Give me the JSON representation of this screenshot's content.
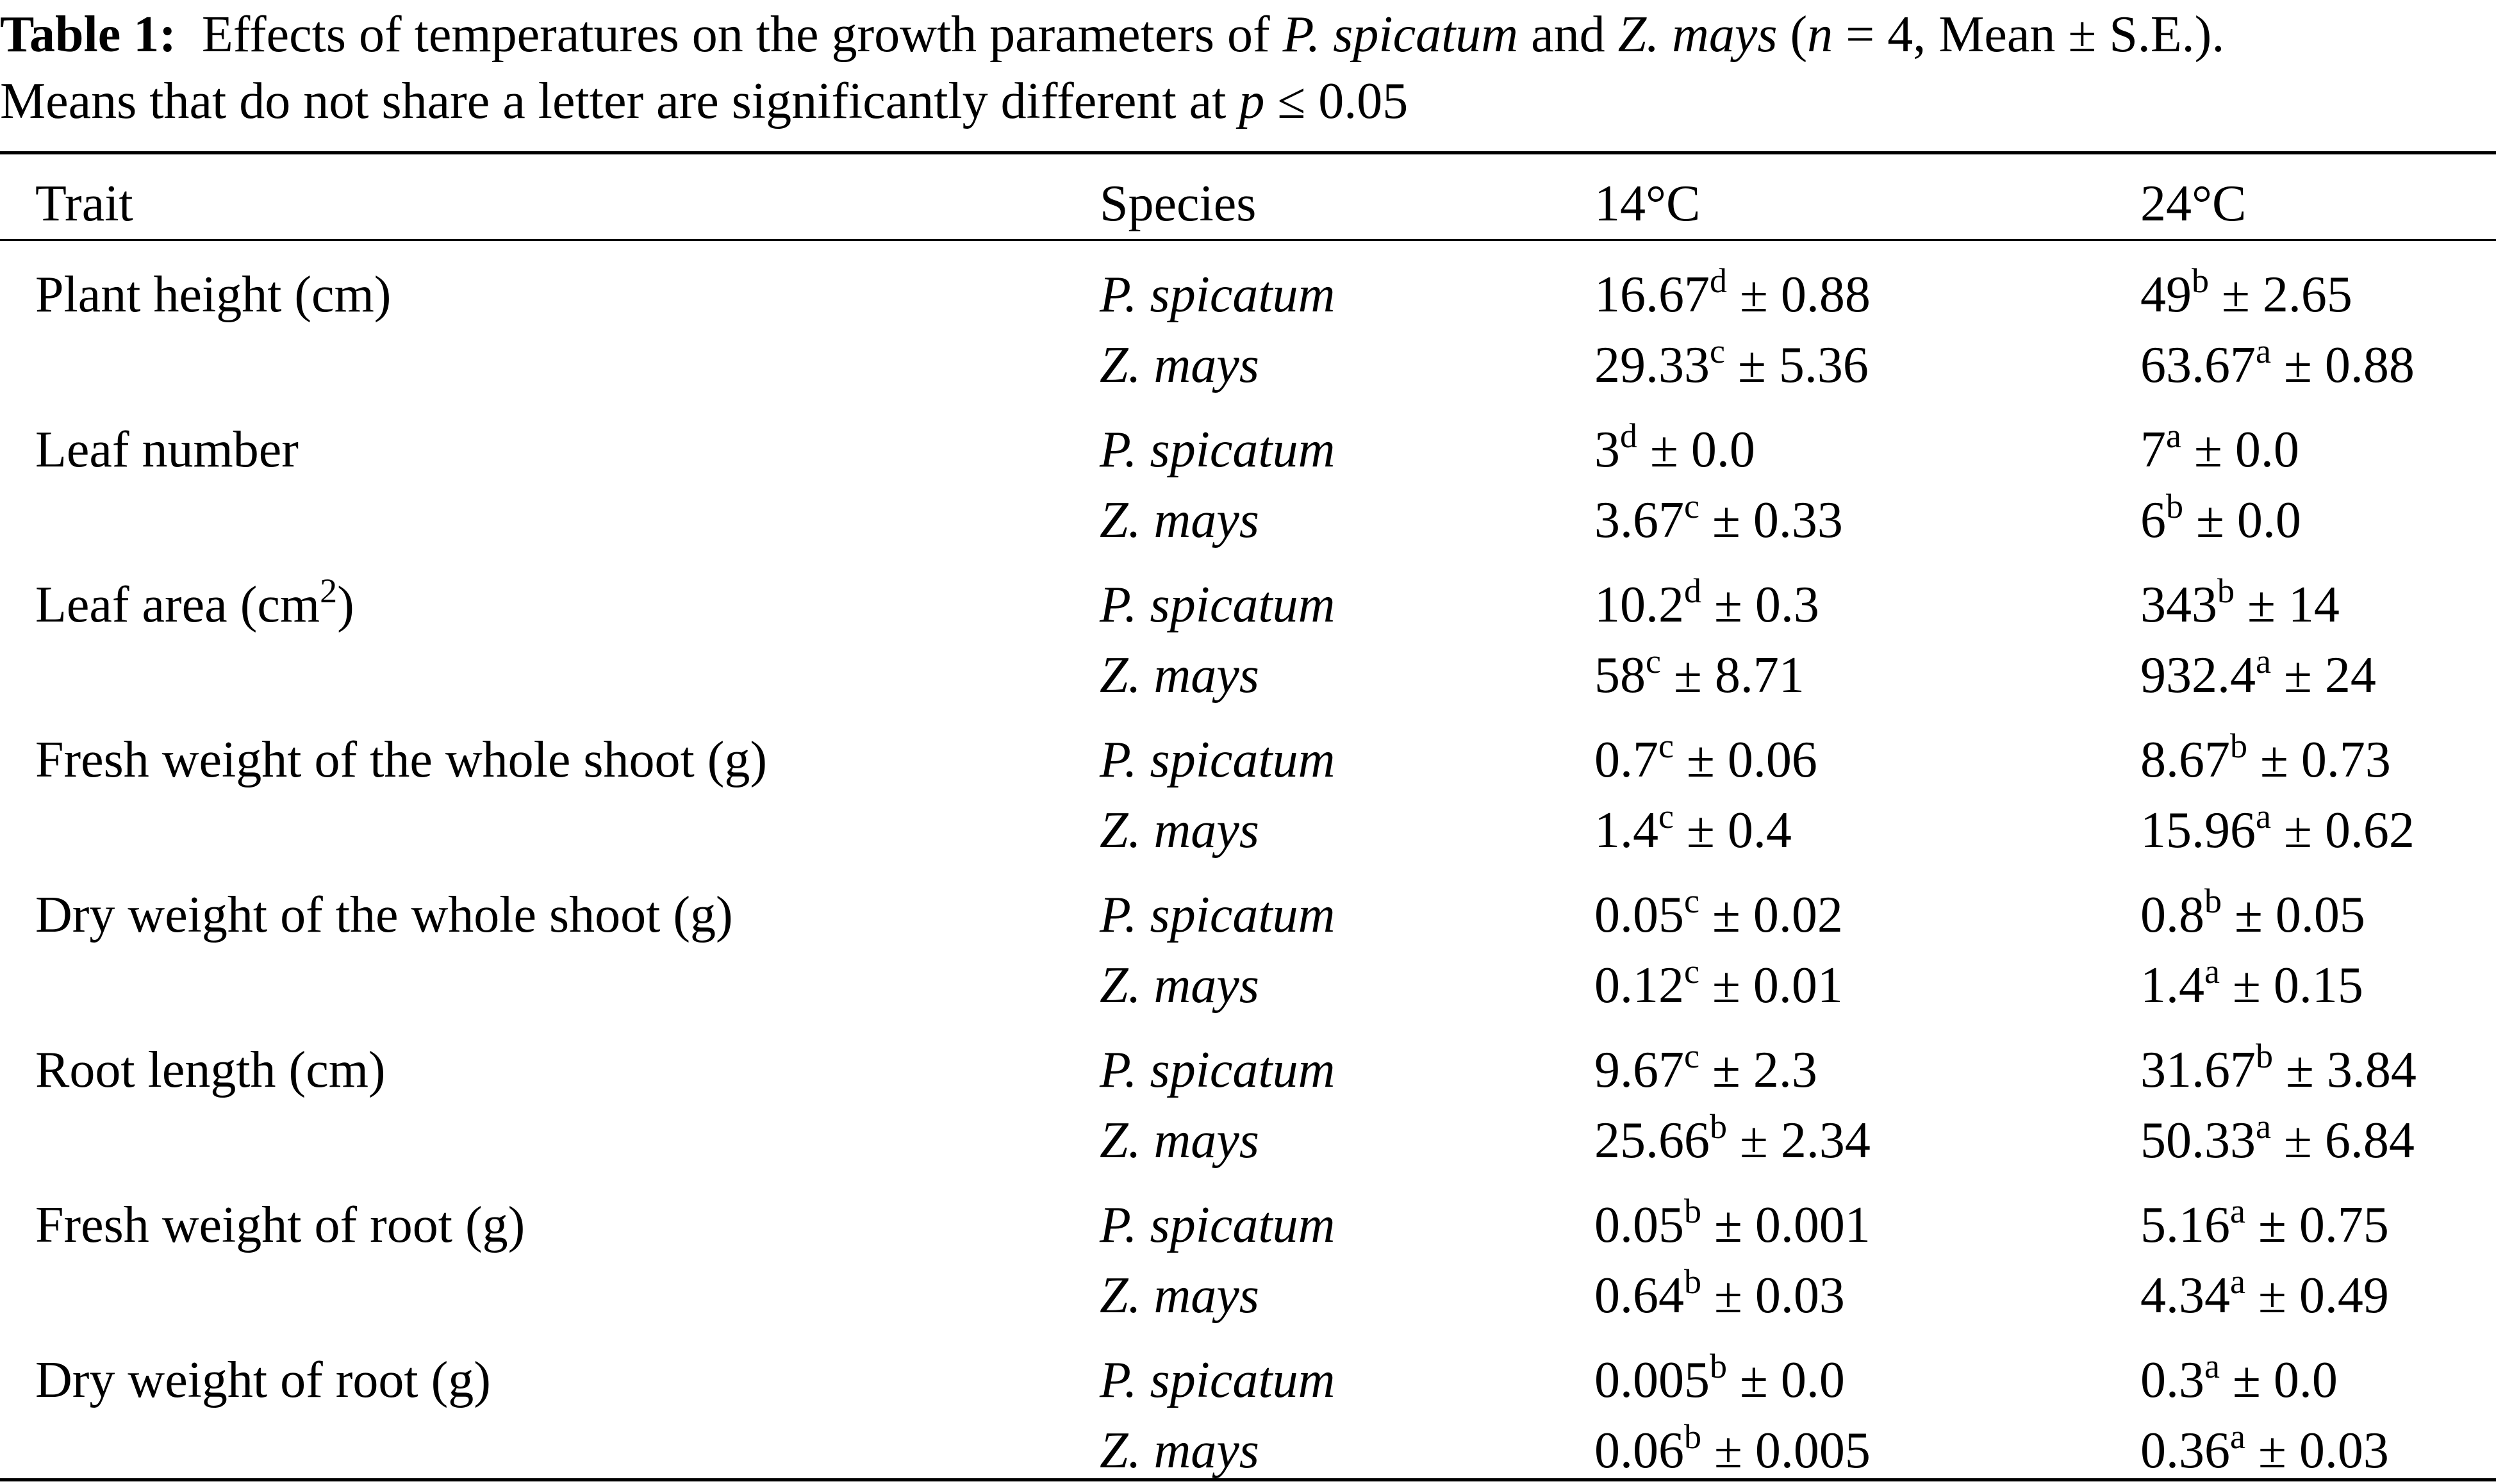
{
  "caption": {
    "label": "Table 1:",
    "text_1": "Effects of temperatures on the growth parameters of",
    "species_1": "P. spicatum",
    "text_2": "and",
    "species_2": "Z. mays",
    "text_3": "(",
    "n_symbol": "n",
    "text_4": "= 4, Mean ± S.E.).",
    "line2": "Means that do not share a letter are significantly different at",
    "p_symbol": "p",
    "p_value": "≤ 0.05"
  },
  "table": {
    "headers": [
      "Trait",
      "Species",
      "14°C",
      "24°C"
    ],
    "rows": [
      {
        "trait": "Plant height (cm)",
        "trait_sup": "",
        "trait_end": "",
        "entries": [
          {
            "species": "P. spicatum",
            "t14": {
              "mean": "16.67",
              "letter": "d",
              "se": "± 0.88"
            },
            "t24": {
              "mean": "49",
              "letter": "b",
              "se": "± 2.65"
            }
          },
          {
            "species": "Z. mays",
            "t14": {
              "mean": "29.33",
              "letter": "c",
              "se": "± 5.36"
            },
            "t24": {
              "mean": "63.67",
              "letter": "a",
              "se": "± 0.88"
            }
          }
        ]
      },
      {
        "trait": "Leaf number",
        "trait_sup": "",
        "trait_end": "",
        "entries": [
          {
            "species": "P. spicatum",
            "t14": {
              "mean": "3",
              "letter": "d",
              "se": "± 0.0"
            },
            "t24": {
              "mean": "7",
              "letter": "a",
              "se": "± 0.0"
            }
          },
          {
            "species": "Z. mays",
            "t14": {
              "mean": "3.67",
              "letter": "c",
              "se": "± 0.33"
            },
            "t24": {
              "mean": "6",
              "letter": "b",
              "se": "± 0.0"
            }
          }
        ]
      },
      {
        "trait": "Leaf area (cm",
        "trait_sup": "2",
        "trait_end": ")",
        "entries": [
          {
            "species": "P. spicatum",
            "t14": {
              "mean": "10.2",
              "letter": "d",
              "se": "± 0.3"
            },
            "t24": {
              "mean": "343",
              "letter": "b",
              "se": "± 14"
            }
          },
          {
            "species": "Z. mays",
            "t14": {
              "mean": "58",
              "letter": "c",
              "se": "± 8.71"
            },
            "t24": {
              "mean": "932.4",
              "letter": "a",
              "se": "± 24"
            }
          }
        ]
      },
      {
        "trait": "Fresh weight of the whole shoot (g)",
        "trait_sup": "",
        "trait_end": "",
        "entries": [
          {
            "species": "P. spicatum",
            "t14": {
              "mean": "0.7",
              "letter": "c",
              "se": "± 0.06"
            },
            "t24": {
              "mean": "8.67",
              "letter": "b",
              "se": "± 0.73"
            }
          },
          {
            "species": "Z. mays",
            "t14": {
              "mean": "1.4",
              "letter": "c",
              "se": "± 0.4"
            },
            "t24": {
              "mean": "15.96",
              "letter": "a",
              "se": "± 0.62"
            }
          }
        ]
      },
      {
        "trait": "Dry weight of the whole shoot (g)",
        "trait_sup": "",
        "trait_end": "",
        "entries": [
          {
            "species": "P. spicatum",
            "t14": {
              "mean": "0.05",
              "letter": "c",
              "se": "± 0.02"
            },
            "t24": {
              "mean": "0.8",
              "letter": "b",
              "se": "± 0.05"
            }
          },
          {
            "species": "Z. mays",
            "t14": {
              "mean": "0.12",
              "letter": "c",
              "se": "± 0.01"
            },
            "t24": {
              "mean": "1.4",
              "letter": "a",
              "se": "± 0.15"
            }
          }
        ]
      },
      {
        "trait": "Root length (cm)",
        "trait_sup": "",
        "trait_end": "",
        "entries": [
          {
            "species": "P. spicatum",
            "t14": {
              "mean": "9.67",
              "letter": "c",
              "se": "± 2.3"
            },
            "t24": {
              "mean": "31.67",
              "letter": "b",
              "se": "± 3.84"
            }
          },
          {
            "species": "Z. mays",
            "t14": {
              "mean": "25.66",
              "letter": "b",
              "se": "± 2.34"
            },
            "t24": {
              "mean": "50.33",
              "letter": "a",
              "se": "± 6.84"
            }
          }
        ]
      },
      {
        "trait": "Fresh weight of root (g)",
        "trait_sup": "",
        "trait_end": "",
        "entries": [
          {
            "species": "P. spicatum",
            "t14": {
              "mean": "0.05",
              "letter": "b",
              "se": "± 0.001"
            },
            "t24": {
              "mean": "5.16",
              "letter": "a",
              "se": "± 0.75"
            }
          },
          {
            "species": "Z. mays",
            "t14": {
              "mean": "0.64",
              "letter": "b",
              "se": "± 0.03"
            },
            "t24": {
              "mean": "4.34",
              "letter": "a",
              "se": "± 0.49"
            }
          }
        ]
      },
      {
        "trait": "Dry weight of root (g)",
        "trait_sup": "",
        "trait_end": "",
        "entries": [
          {
            "species": "P. spicatum",
            "t14": {
              "mean": "0.005",
              "letter": "b",
              "se": "± 0.0"
            },
            "t24": {
              "mean": "0.3",
              "letter": "a",
              "se": "± 0.0"
            }
          },
          {
            "species": "Z. mays",
            "t14": {
              "mean": "0.06",
              "letter": "b",
              "se": "± 0.005"
            },
            "t24": {
              "mean": "0.36",
              "letter": "a",
              "se": "± 0.03"
            }
          }
        ]
      }
    ]
  }
}
